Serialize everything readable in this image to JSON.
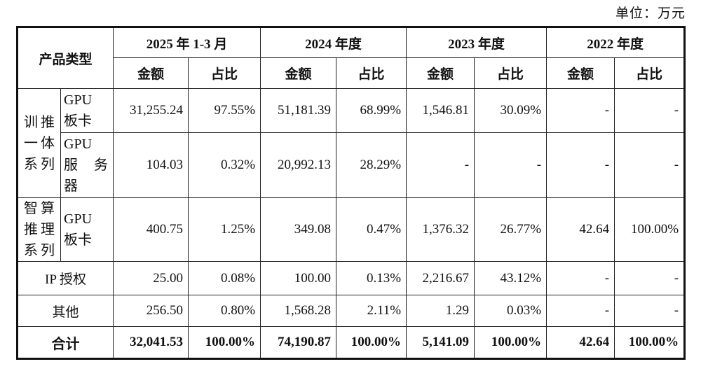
{
  "unit_label": "单位：万元",
  "table": {
    "product_type_header": "产品类型",
    "periods": [
      "2025 年 1-3 月",
      "2024 年度",
      "2023 年度",
      "2022 年度"
    ],
    "amount_header": "金额",
    "ratio_header": "占比",
    "groups": {
      "xuntui": {
        "line1": "训推",
        "line2": "一体",
        "line3": "系列"
      },
      "zhisuan": {
        "line1": "智算",
        "line2": "推理",
        "line3": "系列"
      }
    },
    "rows": {
      "gpu_board_xuntui": {
        "label_line1": "GPU",
        "label_line2": "板卡",
        "values": [
          "31,255.24",
          "97.55%",
          "51,181.39",
          "68.99%",
          "1,546.81",
          "30.09%",
          "-",
          "-"
        ]
      },
      "gpu_server": {
        "label_line1": "GPU",
        "label_line2": "服务",
        "label_line3": "器",
        "values": [
          "104.03",
          "0.32%",
          "20,992.13",
          "28.29%",
          "-",
          "-",
          "-",
          "-"
        ]
      },
      "gpu_board_zhisuan": {
        "label_line1": "GPU",
        "label_line2": "板卡",
        "values": [
          "400.75",
          "1.25%",
          "349.08",
          "0.47%",
          "1,376.32",
          "26.77%",
          "42.64",
          "100.00%"
        ]
      },
      "ip_license": {
        "label": "IP 授权",
        "values": [
          "25.00",
          "0.08%",
          "100.00",
          "0.13%",
          "2,216.67",
          "43.12%",
          "-",
          "-"
        ]
      },
      "other": {
        "label": "其他",
        "values": [
          "256.50",
          "0.80%",
          "1,568.28",
          "2.11%",
          "1.29",
          "0.03%",
          "-",
          "-"
        ]
      },
      "total": {
        "label": "合计",
        "values": [
          "32,041.53",
          "100.00%",
          "74,190.87",
          "100.00%",
          "5,141.09",
          "100.00%",
          "42.64",
          "100.00%"
        ]
      }
    }
  }
}
